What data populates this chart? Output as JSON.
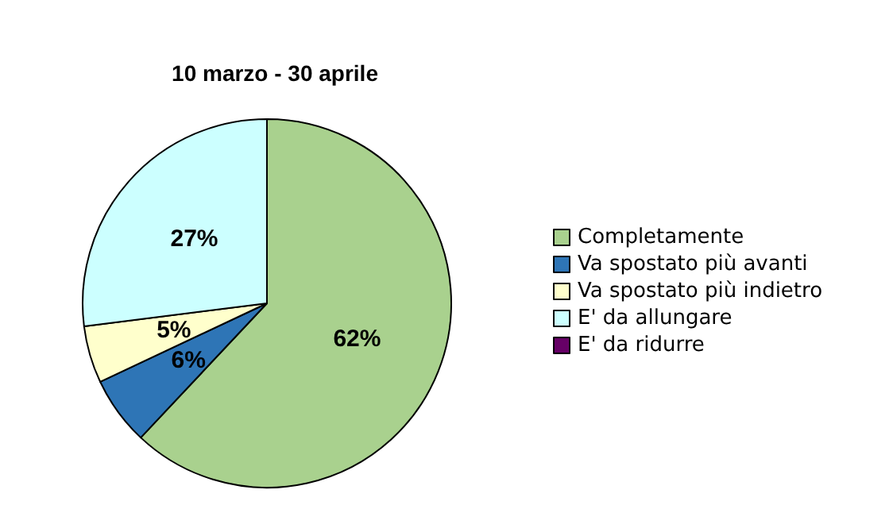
{
  "chart_data": {
    "type": "pie",
    "title": "10 marzo - 30 aprile",
    "categories": [
      "Completamente",
      "Va spostato più avanti",
      "Va spostato più indietro",
      "E' da allungare",
      "E' da ridurre"
    ],
    "values": [
      62,
      6,
      5,
      27,
      0
    ],
    "value_labels": [
      "62%",
      "6%",
      "5%",
      "27%",
      null
    ],
    "colors": [
      "#a9d18e",
      "#2e75b6",
      "#ffffcc",
      "#ccffff",
      "#660066"
    ],
    "legend": "right"
  }
}
